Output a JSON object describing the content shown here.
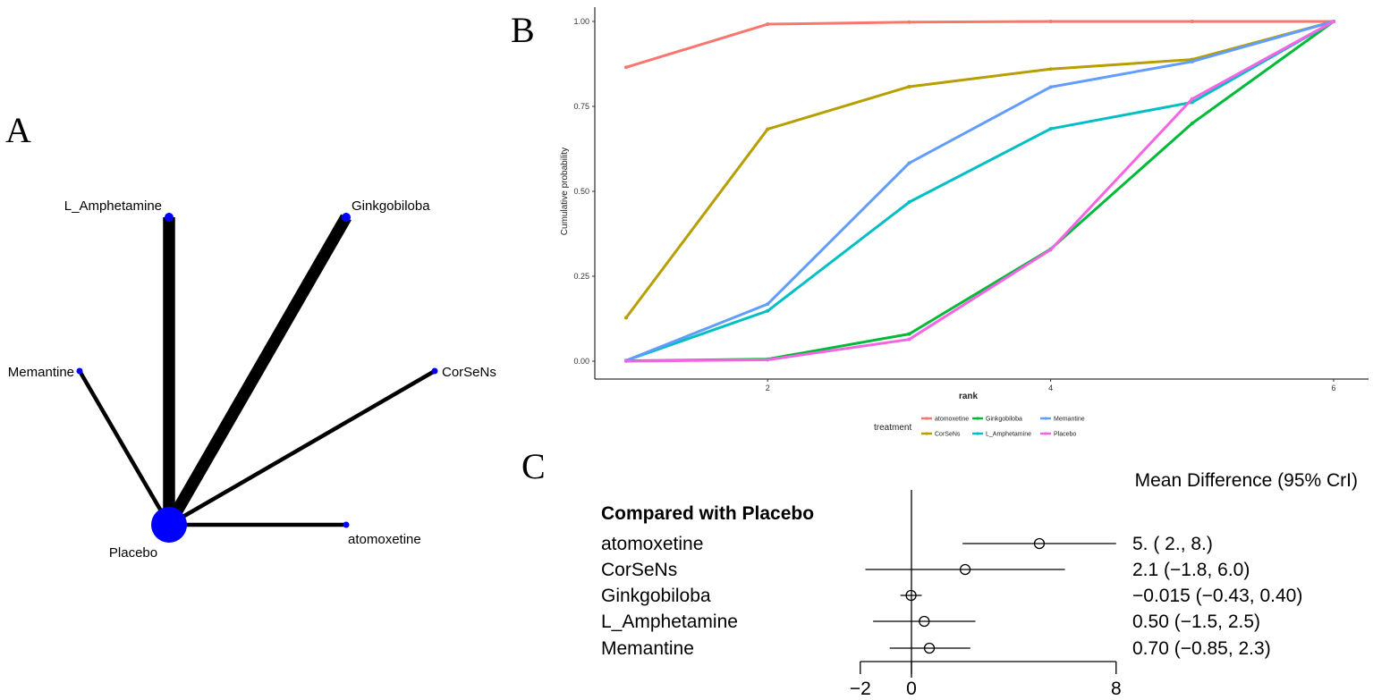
{
  "panel_letters": {
    "a": "A",
    "b": "B",
    "c": "C"
  },
  "chart_data": [
    {
      "type": "network",
      "nodes": [
        {
          "name": "L_Amphetamine",
          "size": 1
        },
        {
          "name": "Ginkgobiloba",
          "size": 1
        },
        {
          "name": "Memantine",
          "size": 0.7
        },
        {
          "name": "CorSeNs",
          "size": 0.7
        },
        {
          "name": "Placebo",
          "size": 4
        },
        {
          "name": "atomoxetine",
          "size": 0.7
        }
      ],
      "edges": [
        {
          "from": "Placebo",
          "to": "L_Amphetamine",
          "weight": 3
        },
        {
          "from": "Placebo",
          "to": "Ginkgobiloba",
          "weight": 3
        },
        {
          "from": "Placebo",
          "to": "Memantine",
          "weight": 1
        },
        {
          "from": "Placebo",
          "to": "CorSeNs",
          "weight": 1
        },
        {
          "from": "Placebo",
          "to": "atomoxetine",
          "weight": 1
        }
      ],
      "node_color": "#0000ff"
    },
    {
      "type": "line",
      "xlabel": "rank",
      "ylabel": "Cumulative probability",
      "xlim": [
        1,
        6
      ],
      "ylim": [
        0,
        1
      ],
      "x_ticks": [
        "2",
        "4",
        "6"
      ],
      "y_ticks": [
        "0.00",
        "0.25",
        "0.50",
        "0.75",
        "1.00"
      ],
      "x": [
        1,
        2,
        3,
        4,
        5,
        6
      ],
      "legend_title": "treatment",
      "legend_position": "bottom",
      "series": [
        {
          "name": "atomoxetine",
          "color": "#f8766d",
          "values": [
            0.865,
            0.992,
            0.998,
            1.0,
            1.0,
            1.0
          ]
        },
        {
          "name": "CorSeNs",
          "color": "#b79f00",
          "values": [
            0.128,
            0.683,
            0.808,
            0.86,
            0.888,
            1.0
          ]
        },
        {
          "name": "Ginkgobiloba",
          "color": "#00ba38",
          "values": [
            0.001,
            0.006,
            0.08,
            0.33,
            0.7,
            1.0
          ]
        },
        {
          "name": "L_Amphetamine",
          "color": "#00bfc4",
          "values": [
            0.002,
            0.148,
            0.468,
            0.684,
            0.762,
            1.0
          ]
        },
        {
          "name": "Memantine",
          "color": "#619cff",
          "values": [
            0.002,
            0.168,
            0.583,
            0.807,
            0.882,
            1.0
          ]
        },
        {
          "name": "Placebo",
          "color": "#f564e3",
          "values": [
            0.0,
            0.004,
            0.064,
            0.328,
            0.772,
            1.0
          ]
        }
      ]
    },
    {
      "type": "forest",
      "header": "Compared with Placebo",
      "column_title": "Mean Difference (95% CrI)",
      "xlim": [
        -2,
        8
      ],
      "x_ticks": [
        "−2",
        "0",
        "8"
      ],
      "reference": 0,
      "rows": [
        {
          "label": "atomoxetine",
          "estimate": 5.0,
          "lower": 2.0,
          "upper": 8.0,
          "text": "5. ( 2.,  8.)"
        },
        {
          "label": "CorSeNs",
          "estimate": 2.1,
          "lower": -1.8,
          "upper": 6.0,
          "text": "2.1 (−1.8, 6.0)"
        },
        {
          "label": "Ginkgobiloba",
          "estimate": -0.015,
          "lower": -0.43,
          "upper": 0.4,
          "text": "−0.015 (−0.43, 0.40)"
        },
        {
          "label": "L_Amphetamine",
          "estimate": 0.5,
          "lower": -1.5,
          "upper": 2.5,
          "text": "0.50 (−1.5, 2.5)"
        },
        {
          "label": "Memantine",
          "estimate": 0.7,
          "lower": -0.85,
          "upper": 2.3,
          "text": "0.70 (−0.85, 2.3)"
        }
      ]
    }
  ]
}
